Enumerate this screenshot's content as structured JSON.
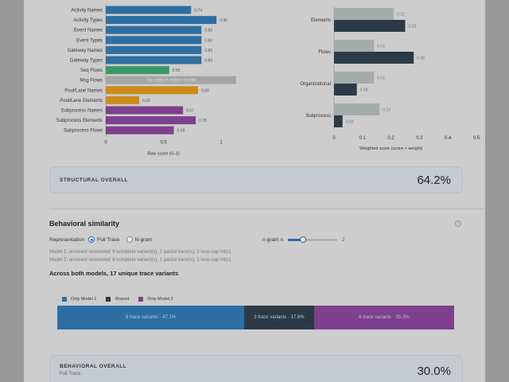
{
  "colors": {
    "bar_blue": "#2e6fa3",
    "bar_green": "#3a9a66",
    "bar_gray": "#a4a6a6",
    "bar_orange": "#cc8a1a",
    "bar_purple": "#7e3f8e",
    "weighted_light": "#a4acac",
    "weighted_dark": "#2c3a48",
    "only_model_1": "#2e6fa3",
    "shared": "#2c3a48",
    "only_model_2": "#7e3f8e"
  },
  "chart_data": [
    {
      "type": "bar",
      "orientation": "horizontal",
      "categories": [
        "Activity Names",
        "Activity Types",
        "Event Names",
        "Event Types",
        "Gateway Names",
        "Gateway Types",
        "Seq Flows",
        "Msg Flows",
        "Pool/Lane Names",
        "Pool/Lane Elements",
        "Subprocess Names",
        "Subprocess Elements",
        "Subprocess Flows"
      ],
      "values": [
        0.74,
        0.96,
        0.83,
        0.83,
        0.83,
        0.83,
        0.55,
        null,
        0.8,
        0.29,
        0.67,
        0.78,
        0.59
      ],
      "value_labels": [
        "0.74",
        "0.96",
        "0.83",
        "0.83",
        "0.83",
        "0.83",
        "0.55",
        "",
        "0.80",
        "0.29",
        "0.67",
        "0.78",
        "0.59"
      ],
      "bar_colors": [
        "bar_blue",
        "bar_blue",
        "bar_blue",
        "bar_blue",
        "bar_blue",
        "bar_blue",
        "bar_green",
        "bar_gray",
        "bar_orange",
        "bar_orange",
        "bar_purple",
        "bar_purple",
        "bar_purple"
      ],
      "no_data_label": "No data in either model",
      "xlabel": "Raw score (0–1)",
      "xlim": [
        0,
        1
      ],
      "xticks": [
        "0",
        "0.5",
        "1"
      ]
    },
    {
      "type": "bar",
      "orientation": "horizontal",
      "categories": [
        "Elements",
        "Flows",
        "Organizational",
        "Subprocess"
      ],
      "series": [
        {
          "values": [
            0.21,
            0.14,
            0.14,
            0.16
          ],
          "labels": [
            "0.21",
            "0.14",
            "0.14",
            "0.16"
          ],
          "color": "weighted_light"
        },
        {
          "values": [
            0.25,
            0.28,
            0.08,
            0.03
          ],
          "labels": [
            "0.25",
            "0.28",
            "0.08",
            "0.03"
          ],
          "color": "weighted_dark"
        }
      ],
      "xlabel": "Weighted score (score × weight)",
      "xlim": [
        0,
        0.5
      ],
      "xticks": [
        "0",
        "0.1",
        "0.2",
        "0.3",
        "0.4",
        "0.5"
      ]
    }
  ],
  "structural": {
    "label": "STRUCTURAL OVERALL",
    "value": "64.2%"
  },
  "behavioral": {
    "title": "Behavioral similarity",
    "info_icon": "i",
    "representation_label": "Representation",
    "options": [
      "Full Trace",
      "N-gram"
    ],
    "selected_option": "Full Trace",
    "ngram_label": "n-gram n",
    "ngram_value": "2",
    "slider_fraction": 0.3,
    "notes": [
      "Model 1: unsound recovered; 9 complete variant(s), 2 partial trace(s), 2 loop-cap hit(s).",
      "Model 2: unsound recovered; 8 complete variant(s), 1 partial trace(s), 1 loop-cap hit(s)."
    ],
    "variants_title": "Across both models, 17 unique trace variants",
    "legend": [
      "Only Model 1",
      "Shared",
      "Only Model 2"
    ],
    "segments": [
      {
        "label": "8 trace variants · 47.1%",
        "fraction": 0.471,
        "color": "only_model_1"
      },
      {
        "label": "3 trace variants · 17.6%",
        "fraction": 0.176,
        "color": "shared"
      },
      {
        "label": "6 trace variants · 35.3%",
        "fraction": 0.353,
        "color": "only_model_2"
      }
    ],
    "overall_label": "BEHAVIORAL OVERALL",
    "overall_sub": "Full Trace",
    "overall_value": "30.0%"
  }
}
